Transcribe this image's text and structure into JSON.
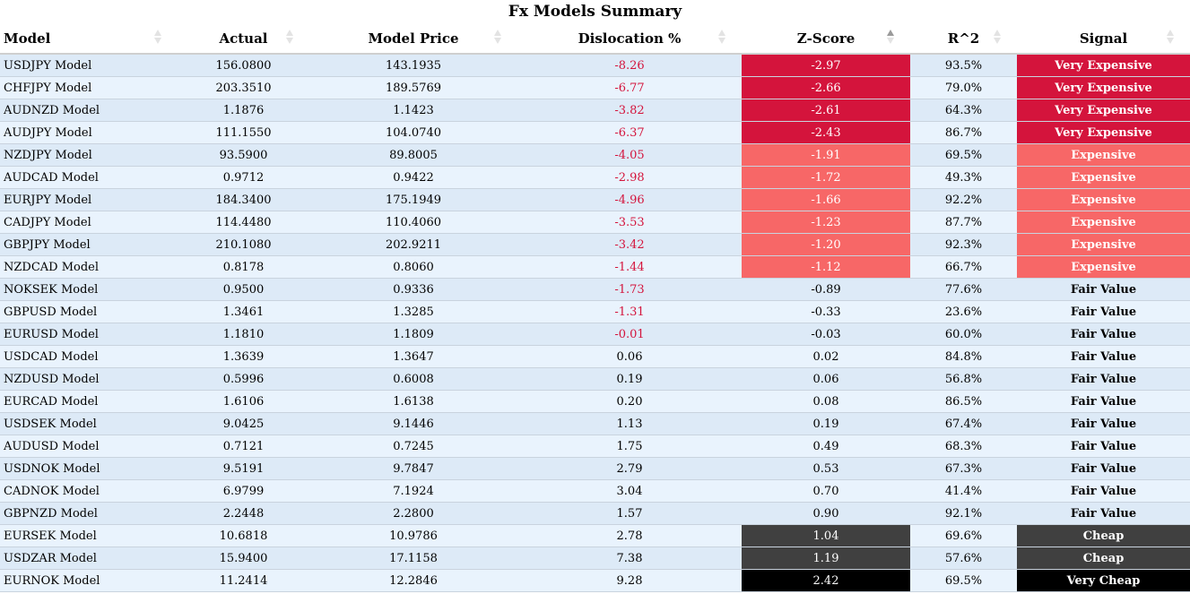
{
  "title": "Fx Models Summary",
  "columns": [
    "Model",
    "Actual",
    "Model Price",
    "Dislocation %",
    "Z-Score",
    "R^2",
    "Signal"
  ],
  "sort": {
    "column": "Z-Score",
    "direction": "ascending"
  },
  "colors": {
    "very_expensive": "#d4143c",
    "expensive": "#f76767",
    "cheap": "#404040",
    "very_cheap": "#000000",
    "negative_text": "#d4143c",
    "row_even": "#ddeaf7",
    "row_odd": "#e9f3fd"
  },
  "rows": [
    {
      "model": "USDJPY Model",
      "actual": "156.0800",
      "model_price": "143.1935",
      "dislocation": "-8.26",
      "zscore": "-2.97",
      "r2": "93.5%",
      "signal": "Very Expensive"
    },
    {
      "model": "CHFJPY Model",
      "actual": "203.3510",
      "model_price": "189.5769",
      "dislocation": "-6.77",
      "zscore": "-2.66",
      "r2": "79.0%",
      "signal": "Very Expensive"
    },
    {
      "model": "AUDNZD Model",
      "actual": "1.1876",
      "model_price": "1.1423",
      "dislocation": "-3.82",
      "zscore": "-2.61",
      "r2": "64.3%",
      "signal": "Very Expensive"
    },
    {
      "model": "AUDJPY Model",
      "actual": "111.1550",
      "model_price": "104.0740",
      "dislocation": "-6.37",
      "zscore": "-2.43",
      "r2": "86.7%",
      "signal": "Very Expensive"
    },
    {
      "model": "NZDJPY Model",
      "actual": "93.5900",
      "model_price": "89.8005",
      "dislocation": "-4.05",
      "zscore": "-1.91",
      "r2": "69.5%",
      "signal": "Expensive"
    },
    {
      "model": "AUDCAD Model",
      "actual": "0.9712",
      "model_price": "0.9422",
      "dislocation": "-2.98",
      "zscore": "-1.72",
      "r2": "49.3%",
      "signal": "Expensive"
    },
    {
      "model": "EURJPY Model",
      "actual": "184.3400",
      "model_price": "175.1949",
      "dislocation": "-4.96",
      "zscore": "-1.66",
      "r2": "92.2%",
      "signal": "Expensive"
    },
    {
      "model": "CADJPY Model",
      "actual": "114.4480",
      "model_price": "110.4060",
      "dislocation": "-3.53",
      "zscore": "-1.23",
      "r2": "87.7%",
      "signal": "Expensive"
    },
    {
      "model": "GBPJPY Model",
      "actual": "210.1080",
      "model_price": "202.9211",
      "dislocation": "-3.42",
      "zscore": "-1.20",
      "r2": "92.3%",
      "signal": "Expensive"
    },
    {
      "model": "NZDCAD Model",
      "actual": "0.8178",
      "model_price": "0.8060",
      "dislocation": "-1.44",
      "zscore": "-1.12",
      "r2": "66.7%",
      "signal": "Expensive"
    },
    {
      "model": "NOKSEK Model",
      "actual": "0.9500",
      "model_price": "0.9336",
      "dislocation": "-1.73",
      "zscore": "-0.89",
      "r2": "77.6%",
      "signal": "Fair Value"
    },
    {
      "model": "GBPUSD Model",
      "actual": "1.3461",
      "model_price": "1.3285",
      "dislocation": "-1.31",
      "zscore": "-0.33",
      "r2": "23.6%",
      "signal": "Fair Value"
    },
    {
      "model": "EURUSD Model",
      "actual": "1.1810",
      "model_price": "1.1809",
      "dislocation": "-0.01",
      "zscore": "-0.03",
      "r2": "60.0%",
      "signal": "Fair Value"
    },
    {
      "model": "USDCAD Model",
      "actual": "1.3639",
      "model_price": "1.3647",
      "dislocation": "0.06",
      "zscore": "0.02",
      "r2": "84.8%",
      "signal": "Fair Value"
    },
    {
      "model": "NZDUSD Model",
      "actual": "0.5996",
      "model_price": "0.6008",
      "dislocation": "0.19",
      "zscore": "0.06",
      "r2": "56.8%",
      "signal": "Fair Value"
    },
    {
      "model": "EURCAD Model",
      "actual": "1.6106",
      "model_price": "1.6138",
      "dislocation": "0.20",
      "zscore": "0.08",
      "r2": "86.5%",
      "signal": "Fair Value"
    },
    {
      "model": "USDSEK Model",
      "actual": "9.0425",
      "model_price": "9.1446",
      "dislocation": "1.13",
      "zscore": "0.19",
      "r2": "67.4%",
      "signal": "Fair Value"
    },
    {
      "model": "AUDUSD Model",
      "actual": "0.7121",
      "model_price": "0.7245",
      "dislocation": "1.75",
      "zscore": "0.49",
      "r2": "68.3%",
      "signal": "Fair Value"
    },
    {
      "model": "USDNOK Model",
      "actual": "9.5191",
      "model_price": "9.7847",
      "dislocation": "2.79",
      "zscore": "0.53",
      "r2": "67.3%",
      "signal": "Fair Value"
    },
    {
      "model": "CADNOK Model",
      "actual": "6.9799",
      "model_price": "7.1924",
      "dislocation": "3.04",
      "zscore": "0.70",
      "r2": "41.4%",
      "signal": "Fair Value"
    },
    {
      "model": "GBPNZD Model",
      "actual": "2.2448",
      "model_price": "2.2800",
      "dislocation": "1.57",
      "zscore": "0.90",
      "r2": "92.1%",
      "signal": "Fair Value"
    },
    {
      "model": "EURSEK Model",
      "actual": "10.6818",
      "model_price": "10.9786",
      "dislocation": "2.78",
      "zscore": "1.04",
      "r2": "69.6%",
      "signal": "Cheap"
    },
    {
      "model": "USDZAR Model",
      "actual": "15.9400",
      "model_price": "17.1158",
      "dislocation": "7.38",
      "zscore": "1.19",
      "r2": "57.6%",
      "signal": "Cheap"
    },
    {
      "model": "EURNOK Model",
      "actual": "11.2414",
      "model_price": "12.2846",
      "dislocation": "9.28",
      "zscore": "2.42",
      "r2": "69.5%",
      "signal": "Very Cheap"
    }
  ]
}
